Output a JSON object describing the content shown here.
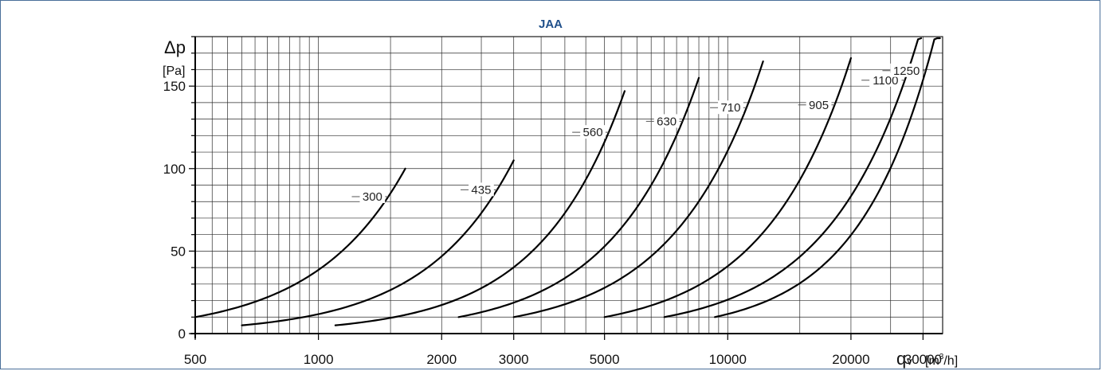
{
  "chart_data": {
    "type": "line",
    "title": "JAA",
    "ylabel": "Δp",
    "yunit": "[Pa]",
    "xlabel_main": "q",
    "xlabel_sub": "v",
    "xunit_pre": "[m",
    "xunit_sup": "3",
    "xunit_post": "/h]",
    "x_scale": "log",
    "xlim": [
      500,
      33500
    ],
    "ylim": [
      0,
      180
    ],
    "grid": true,
    "xticks": [
      500,
      1000,
      2000,
      3000,
      5000,
      10000,
      20000,
      30000
    ],
    "xtick_labels": [
      "500",
      "1000",
      "2000",
      "3000",
      "5000",
      "10000",
      "20000",
      "30000"
    ],
    "yticks": [
      0,
      50,
      100,
      150
    ],
    "ytick_labels": [
      "0",
      "50",
      "100",
      "150"
    ],
    "series": [
      {
        "name": "300",
        "x": [
          500,
          1630
        ],
        "y": [
          10,
          100
        ]
      },
      {
        "name": "435",
        "x": [
          650,
          3000
        ],
        "y": [
          5,
          105
        ]
      },
      {
        "name": "560",
        "x": [
          1100,
          5600
        ],
        "y": [
          5,
          147
        ]
      },
      {
        "name": "630",
        "x": [
          2200,
          8500
        ],
        "y": [
          10,
          155
        ]
      },
      {
        "name": "710",
        "x": [
          3000,
          12200
        ],
        "y": [
          10,
          165
        ]
      },
      {
        "name": "905",
        "x": [
          5000,
          20000
        ],
        "y": [
          10,
          167
        ]
      },
      {
        "name": "1100",
        "x": [
          7000,
          29700
        ],
        "y": [
          10,
          185
        ]
      },
      {
        "name": "1250",
        "x": [
          9300,
          33000
        ],
        "y": [
          10,
          192
        ]
      }
    ]
  }
}
